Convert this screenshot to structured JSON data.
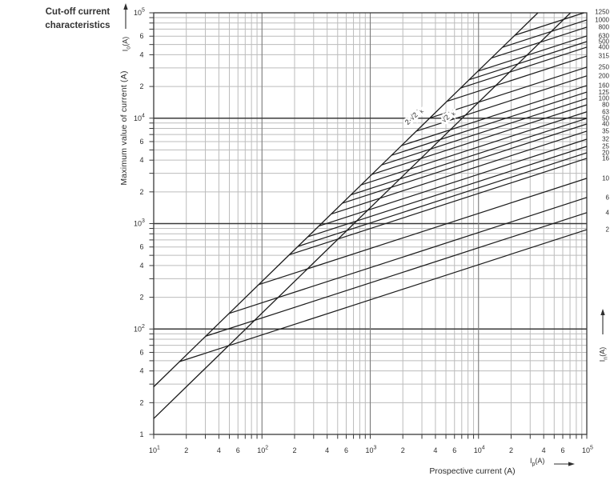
{
  "title": {
    "line1": "Cut-off current",
    "line2": "characteristics"
  },
  "y_axis_title": "Maximum value of current (A)",
  "x_axis_title": "Prospective current (A)",
  "axis_symbols": {
    "io": {
      "pre": "I",
      "sub": "o",
      "post": "(A)"
    },
    "ip": {
      "pre": "I",
      "sub": "p",
      "post": "(A)"
    },
    "in": {
      "pre": "I",
      "sub": "n",
      "post": "(A)"
    }
  },
  "colors": {
    "line": "#1c1c1c",
    "grid_minor": "#bcbcbc",
    "grid_major_v": "#7a7a7a",
    "grid_major_h": "#3a3a3a",
    "axis": "#3a3a3a",
    "text": "#2e2e2e"
  },
  "chart_data": {
    "type": "line",
    "title": "Cut-off current characteristics",
    "xlabel": "Prospective current (A)",
    "ylabel": "Maximum value of current (A)",
    "x_axis": {
      "scale": "log",
      "min": 10,
      "max": 100000,
      "decade_exponents": [
        1,
        2,
        3,
        4,
        5
      ],
      "labeled_minors": [
        2,
        4,
        6
      ]
    },
    "y_axis": {
      "scale": "log",
      "min": 10,
      "max": 100000,
      "decade_exponents": [
        5,
        4,
        3,
        2
      ],
      "bottom_label": "1",
      "labeled_minors": [
        2,
        4,
        6
      ]
    },
    "grid": "log minor gridlines at 2-9 each decade, major lines at decades",
    "reference_lines": [
      {
        "label_prefix": "2·√2 I",
        "label_sub": "k",
        "factor": 2.828
      },
      {
        "label_prefix": "√2 I",
        "label_sub": "k",
        "factor": 1.414
      }
    ],
    "cutoff_line_slope_loglog": 0.333,
    "series_note": "Each fuse rating line runs at slope 1/3 (log-log) from its intersection with the 2·√2 Ik diagonal to Ip = 100 kA",
    "series": [
      {
        "rating_A": 1250,
        "cutoff_A_at_100kA": 102000
      },
      {
        "rating_A": 1000,
        "cutoff_A_at_100kA": 85500
      },
      {
        "rating_A": 800,
        "cutoff_A_at_100kA": 73100
      },
      {
        "rating_A": 630,
        "cutoff_A_at_100kA": 60300
      },
      {
        "rating_A": 500,
        "cutoff_A_at_100kA": 53300
      },
      {
        "rating_A": 400,
        "cutoff_A_at_100kA": 47200
      },
      {
        "rating_A": 315,
        "cutoff_A_at_100kA": 38900
      },
      {
        "rating_A": 250,
        "cutoff_A_at_100kA": 30500
      },
      {
        "rating_A": 200,
        "cutoff_A_at_100kA": 25200
      },
      {
        "rating_A": 160,
        "cutoff_A_at_100kA": 20400
      },
      {
        "rating_A": 125,
        "cutoff_A_at_100kA": 17700
      },
      {
        "rating_A": 100,
        "cutoff_A_at_100kA": 15400
      },
      {
        "rating_A": 80,
        "cutoff_A_at_100kA": 13400
      },
      {
        "rating_A": 63,
        "cutoff_A_at_100kA": 11500
      },
      {
        "rating_A": 50,
        "cutoff_A_at_100kA": 9960
      },
      {
        "rating_A": 40,
        "cutoff_A_at_100kA": 8810
      },
      {
        "rating_A": 35,
        "cutoff_A_at_100kA": 7530
      },
      {
        "rating_A": 32,
        "cutoff_A_at_100kA": 6320
      },
      {
        "rating_A": 25,
        "cutoff_A_at_100kA": 5400
      },
      {
        "rating_A": 20,
        "cutoff_A_at_100kA": 4700
      },
      {
        "rating_A": 16,
        "cutoff_A_at_100kA": 4160
      },
      {
        "rating_A": 10,
        "cutoff_A_at_100kA": 2690
      },
      {
        "rating_A": 6,
        "cutoff_A_at_100kA": 1770
      },
      {
        "rating_A": 4,
        "cutoff_A_at_100kA": 1270
      },
      {
        "rating_A": 2,
        "cutoff_A_at_100kA": 877
      }
    ]
  }
}
